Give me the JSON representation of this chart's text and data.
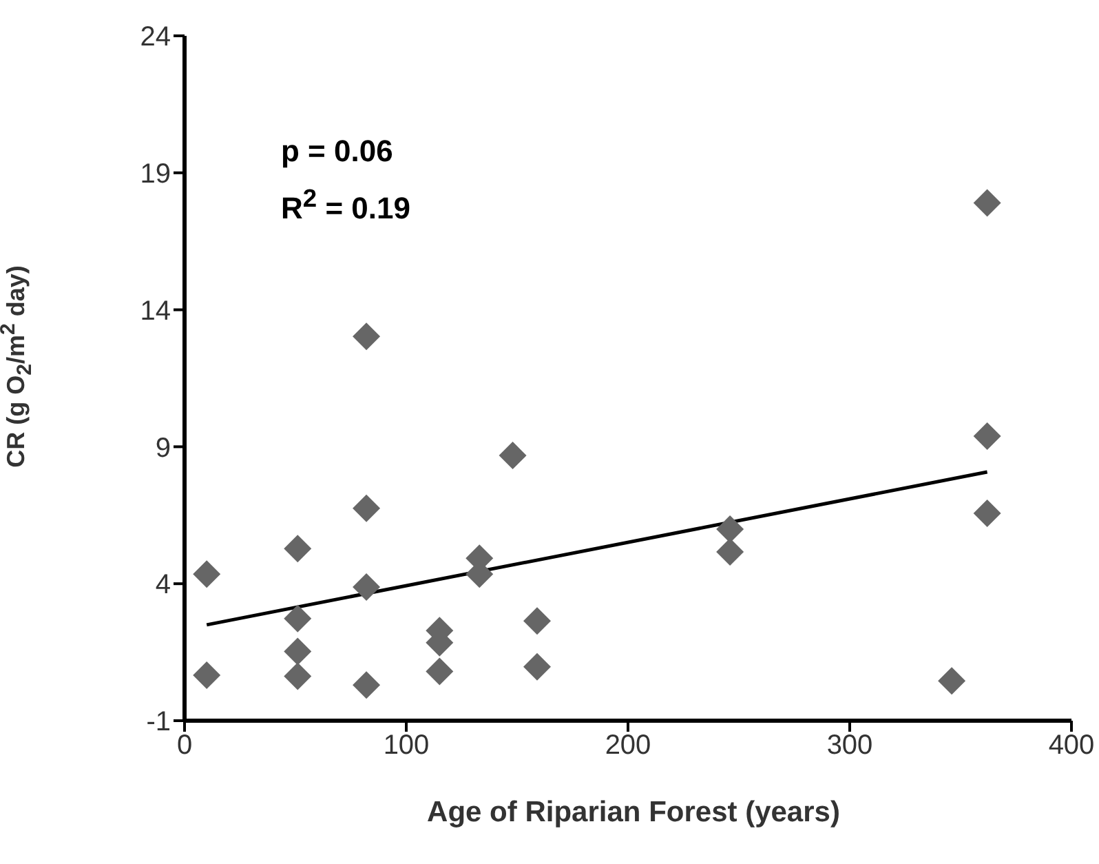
{
  "chart_data": {
    "type": "scatter",
    "xlabel": "Age of Riparian Forest (years)",
    "ylabel": "CR (g O$_{2}$/m$^{2}$ day)",
    "annotations": [
      "p = 0.06",
      "R$^{2}$ = 0.19"
    ],
    "xlim": [
      0,
      400
    ],
    "xticks": [
      0,
      100,
      200,
      300,
      400
    ],
    "ylim": [
      -1,
      24
    ],
    "yticks": [
      -1,
      4,
      9,
      14,
      19,
      24
    ],
    "grid": false,
    "legend": false,
    "marker": "diamond",
    "series": [
      {
        "color": "#666666",
        "x": [
          10,
          10,
          51,
          51,
          51,
          51,
          82,
          82,
          82,
          82,
          115,
          115,
          115,
          133,
          133,
          148,
          159,
          159,
          246,
          246,
          362,
          362,
          362,
          346
        ],
        "values": [
          4.35,
          0.66,
          5.28,
          2.73,
          1.53,
          0.62,
          13.03,
          6.75,
          3.88,
          0.3,
          2.29,
          1.85,
          0.8,
          4.93,
          4.35,
          8.68,
          2.64,
          0.97,
          5.99,
          5.16,
          17.9,
          9.39,
          6.57,
          0.45
        ]
      },
      {
        "type": "line",
        "color": "#000000",
        "x": [
          10,
          362
        ],
        "values": [
          2.5,
          8.08
        ],
        "marker": "none",
        "line_style": "solid"
      }
    ]
  }
}
